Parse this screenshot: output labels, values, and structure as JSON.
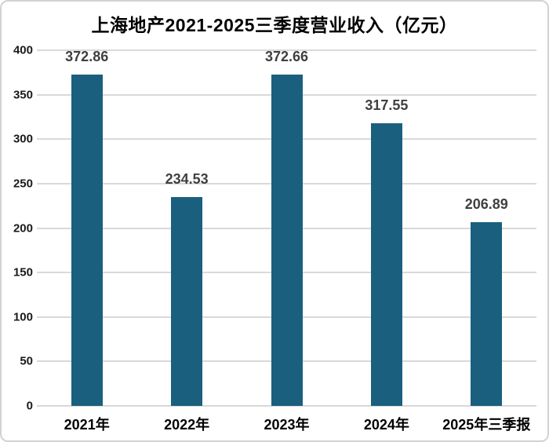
{
  "chart_data": {
    "type": "bar",
    "title": "上海地产2021-2025三季度营业收入（亿元）",
    "categories": [
      "2021年",
      "2022年",
      "2023年",
      "2024年",
      "2025年三季报"
    ],
    "values": [
      372.86,
      234.53,
      372.66,
      317.55,
      206.89
    ],
    "value_labels": [
      "372.86",
      "234.53",
      "372.66",
      "317.55",
      "206.89"
    ],
    "xlabel": "",
    "ylabel": "",
    "ylim": [
      0,
      400
    ],
    "y_tick_step": 50,
    "y_tick_labels": [
      "0",
      "50",
      "100",
      "150",
      "200",
      "250",
      "300",
      "350",
      "400"
    ],
    "grid": true,
    "legend": false,
    "colors": {
      "bar": "#1a5f7e",
      "gridline": "#d9d9d9",
      "title_text": "#000000",
      "value_label_text": "#404040",
      "tick_label_text": "#1a1a1a",
      "border": "#d2d2d2",
      "background": "#ffffff"
    }
  }
}
